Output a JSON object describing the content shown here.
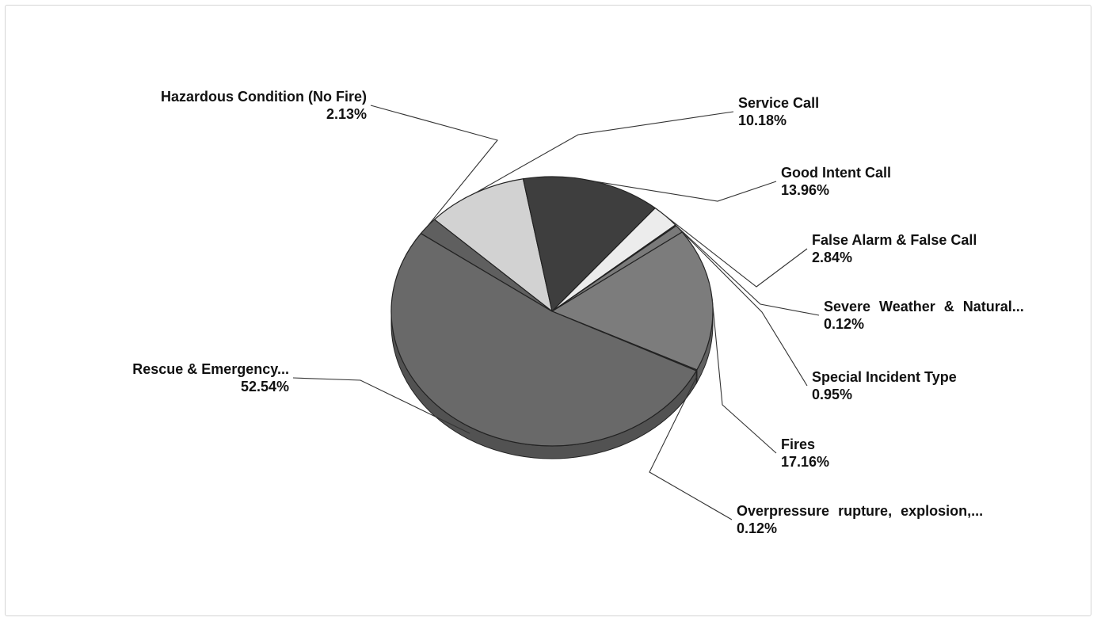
{
  "chart_data": {
    "type": "pie",
    "title": "",
    "style": "3d-tilted",
    "legend": "none (leader-line labels)",
    "slices": [
      {
        "name": "Service Call",
        "label": "Service Call",
        "value": 10.18,
        "value_label": "10.18%",
        "color": "#d2d2d2"
      },
      {
        "name": "Good Intent Call",
        "label": "Good Intent Call",
        "value": 13.96,
        "value_label": "13.96%",
        "color": "#3e3e3e"
      },
      {
        "name": "False Alarm & False Call",
        "label": "False Alarm & False Call",
        "value": 2.84,
        "value_label": "2.84%",
        "color": "#ececec"
      },
      {
        "name": "Severe Weather & Natural...",
        "label": "Severe Weather & Natural...",
        "value": 0.12,
        "value_label": "0.12%",
        "color": "#8a8a8a"
      },
      {
        "name": "Special Incident Type",
        "label": "Special Incident Type",
        "value": 0.95,
        "value_label": "0.95%",
        "color": "#7a7a7a"
      },
      {
        "name": "Fires",
        "label": "Fires",
        "value": 17.16,
        "value_label": "17.16%",
        "color": "#7c7c7c"
      },
      {
        "name": "Overpressure rupture, explosion,...",
        "label": "Overpressure rupture, explosion,...",
        "value": 0.12,
        "value_label": "0.12%",
        "color": "#6a6a6a"
      },
      {
        "name": "Rescue & Emergency...",
        "label": "Rescue & Emergency...",
        "value": 52.54,
        "value_label": "52.54%",
        "color": "#696969"
      },
      {
        "name": "Hazardous Condition (No Fire)",
        "label": "Hazardous Condition (No Fire)",
        "value": 2.13,
        "value_label": "2.13%",
        "color": "#5f5f5f"
      }
    ]
  }
}
